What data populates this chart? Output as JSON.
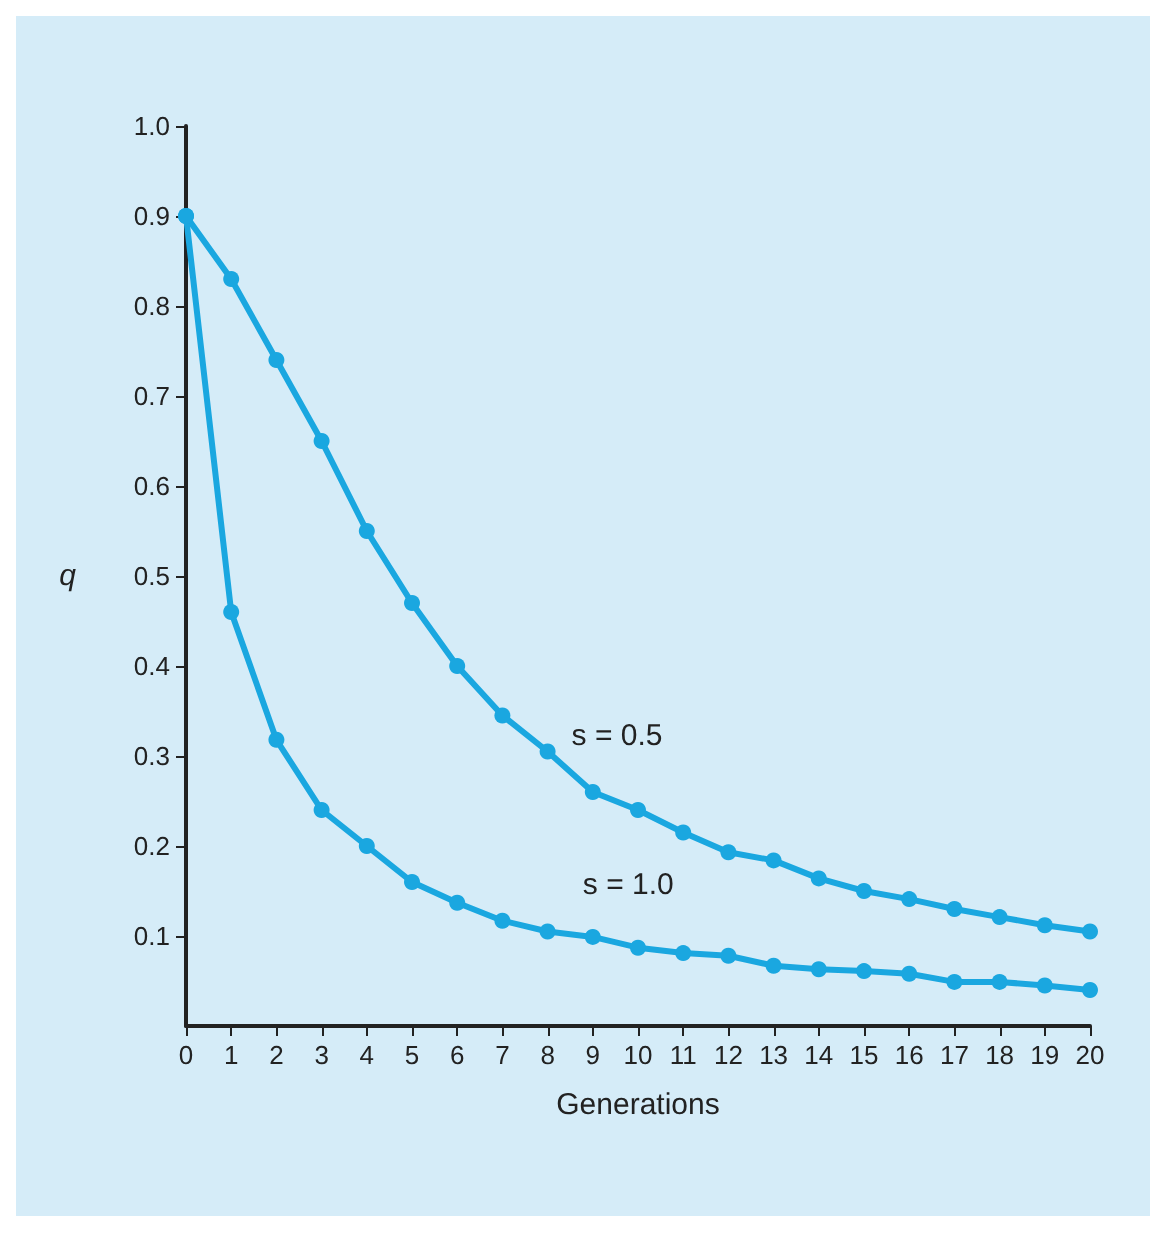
{
  "chart_data": {
    "type": "line",
    "xlabel": "Generations",
    "ylabel": "q",
    "x": [
      0,
      1,
      2,
      3,
      4,
      5,
      6,
      7,
      8,
      9,
      10,
      11,
      12,
      13,
      14,
      15,
      16,
      17,
      18,
      19,
      20
    ],
    "series": [
      {
        "color": "#1aa7e0",
        "values": [
          0.9,
          0.83,
          0.74,
          0.65,
          0.55,
          0.47,
          0.4,
          0.345,
          0.305,
          0.26,
          0.24,
          0.215,
          0.193,
          0.184,
          0.164,
          0.15,
          0.141,
          0.13,
          0.121,
          0.112,
          0.105
        ]
      },
      {
        "color": "#1aa7e0",
        "values": [
          0.9,
          0.46,
          0.318,
          0.24,
          0.2,
          0.16,
          0.137,
          0.117,
          0.105,
          0.099,
          0.087,
          0.081,
          0.078,
          0.067,
          0.063,
          0.061,
          0.058,
          0.049,
          0.049,
          0.045,
          0.04
        ]
      }
    ],
    "annotations": [
      "s = 0.5",
      "s = 1.0"
    ],
    "xlim": [
      0,
      20
    ],
    "xticks": [
      0,
      1,
      2,
      3,
      4,
      5,
      6,
      7,
      8,
      9,
      10,
      11,
      12,
      13,
      14,
      15,
      16,
      17,
      18,
      19,
      20
    ],
    "ylim": [
      0,
      1
    ],
    "yticks": [
      0.1,
      0.2,
      0.3,
      0.4,
      0.5,
      0.6,
      0.7,
      0.8,
      0.9,
      {
        "value": 1,
        "label": "1.0"
      }
    ],
    "grid": false,
    "marker": "circle",
    "line_style": "solid"
  }
}
